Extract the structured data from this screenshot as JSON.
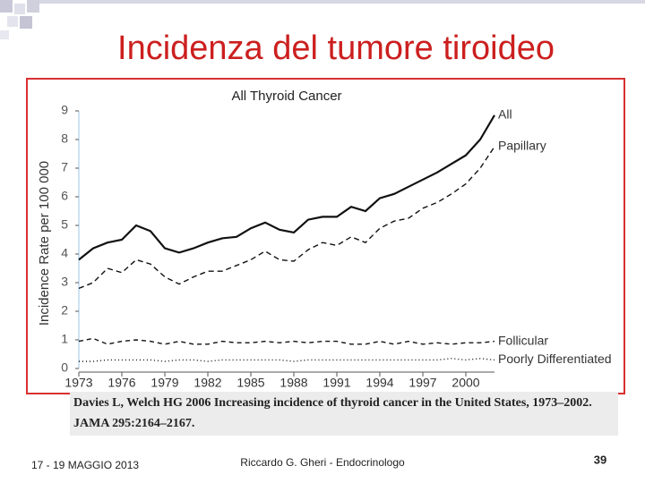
{
  "slide_title": "Incidenza del tumore tiroideo",
  "citation": [
    "Davies L, Welch HG 2006 Increasing incidence of thyroid cancer in the United States, 1973–2002.",
    "JAMA 295:2164–2167."
  ],
  "footer": {
    "date": "17 - 19 MAGGIO 2013",
    "author": "Riccardo G. Gheri - Endocrinologo",
    "page": "39"
  },
  "chart_data": {
    "type": "line",
    "title": "All Thyroid Cancer",
    "y_label": "Incidence Rate per 100 000",
    "x": [
      1973,
      1974,
      1975,
      1976,
      1977,
      1978,
      1979,
      1980,
      1981,
      1982,
      1983,
      1984,
      1985,
      1986,
      1987,
      1988,
      1989,
      1990,
      1991,
      1992,
      1993,
      1994,
      1995,
      1996,
      1997,
      1998,
      1999,
      2000,
      2001,
      2002
    ],
    "xlim": [
      1973,
      2002
    ],
    "xticks": [
      1973,
      1976,
      1979,
      1982,
      1985,
      1988,
      1991,
      1994,
      1997,
      2000
    ],
    "ylim": [
      0,
      9
    ],
    "yticks": [
      0,
      1,
      2,
      3,
      4,
      5,
      6,
      7,
      8,
      9
    ],
    "series": [
      {
        "name": "All",
        "color": "#111111",
        "dash": "none",
        "values": [
          3.8,
          4.2,
          4.4,
          4.5,
          5.0,
          4.8,
          4.2,
          4.05,
          4.2,
          4.4,
          4.55,
          4.6,
          4.9,
          5.1,
          4.85,
          4.75,
          5.2,
          5.3,
          5.3,
          5.65,
          5.5,
          5.95,
          6.1,
          6.35,
          6.6,
          6.85,
          7.15,
          7.45,
          8.0,
          8.85
        ]
      },
      {
        "name": "Papillary",
        "color": "#111111",
        "dash": "6 4",
        "values": [
          2.8,
          3.0,
          3.5,
          3.35,
          3.8,
          3.65,
          3.2,
          2.95,
          3.2,
          3.4,
          3.4,
          3.6,
          3.8,
          4.1,
          3.8,
          3.75,
          4.15,
          4.4,
          4.3,
          4.6,
          4.4,
          4.9,
          5.15,
          5.25,
          5.6,
          5.8,
          6.1,
          6.45,
          7.0,
          7.75
        ]
      },
      {
        "name": "Follicular",
        "color": "#111111",
        "dash": "5 4",
        "values": [
          0.95,
          1.05,
          0.85,
          0.95,
          1.0,
          0.95,
          0.85,
          0.95,
          0.85,
          0.85,
          0.95,
          0.9,
          0.9,
          0.95,
          0.9,
          0.95,
          0.9,
          0.95,
          0.95,
          0.85,
          0.85,
          0.95,
          0.85,
          0.95,
          0.85,
          0.9,
          0.85,
          0.9,
          0.9,
          0.95
        ]
      },
      {
        "name": "Poorly Differentiated",
        "color": "#111111",
        "dash": "1 3",
        "values": [
          0.25,
          0.25,
          0.3,
          0.3,
          0.3,
          0.3,
          0.25,
          0.3,
          0.3,
          0.25,
          0.3,
          0.3,
          0.3,
          0.3,
          0.3,
          0.25,
          0.3,
          0.3,
          0.3,
          0.3,
          0.3,
          0.3,
          0.3,
          0.3,
          0.3,
          0.3,
          0.35,
          0.3,
          0.35,
          0.3
        ]
      }
    ]
  }
}
